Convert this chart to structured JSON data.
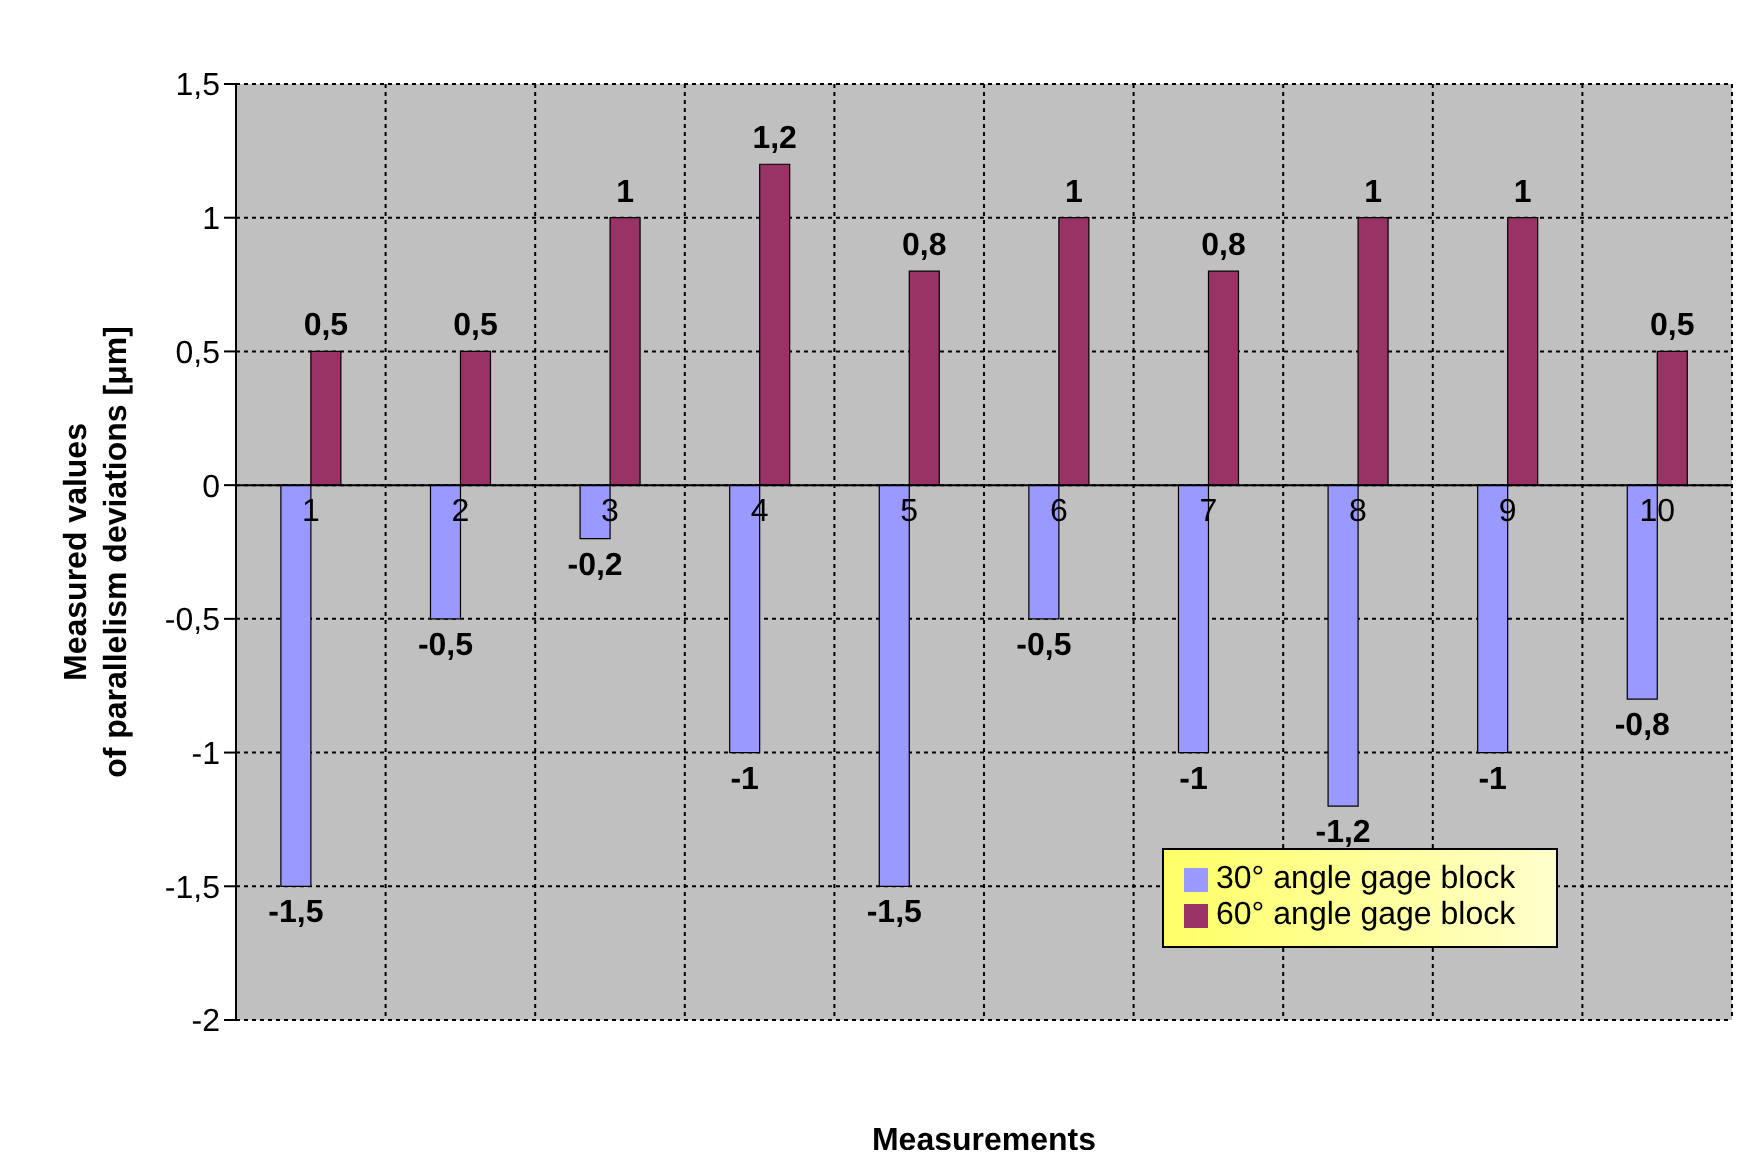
{
  "chart_data": {
    "type": "bar",
    "xlabel": "Measurements",
    "ylabel": "Measured values\nof parallelism deviations [μm]",
    "categories": [
      "1",
      "2",
      "3",
      "4",
      "5",
      "6",
      "7",
      "8",
      "9",
      "10"
    ],
    "series": [
      {
        "name": "30° angle gage block",
        "color": "#9999ff",
        "values": [
          -1.5,
          -0.5,
          -0.2,
          -1,
          -1.5,
          -0.5,
          -1,
          -1.2,
          -1,
          -0.8
        ],
        "value_labels": [
          "-1,5",
          "-0,5",
          "-0,2",
          "-1",
          "-1,5",
          "-0,5",
          "-1",
          "-1,2",
          "-1",
          "-0,8"
        ]
      },
      {
        "name": "60° angle gage block",
        "color": "#993366",
        "values": [
          0.5,
          0.5,
          1,
          1.2,
          0.8,
          1,
          0.8,
          1,
          1,
          0.5
        ],
        "value_labels": [
          "0,5",
          "0,5",
          "1",
          "1,2",
          "0,8",
          "1",
          "0,8",
          "1",
          "1",
          "0,5"
        ]
      }
    ],
    "ylim": [
      -2,
      1.5
    ],
    "yticks": [
      {
        "value": -2,
        "label": "-2"
      },
      {
        "value": -1.5,
        "label": "-1,5"
      },
      {
        "value": -1,
        "label": "-1"
      },
      {
        "value": -0.5,
        "label": "-0,5"
      },
      {
        "value": 0,
        "label": "0"
      },
      {
        "value": 0.5,
        "label": "0,5"
      },
      {
        "value": 1,
        "label": "1"
      },
      {
        "value": 1.5,
        "label": "1,5"
      }
    ],
    "grid": true,
    "legend": "bottom right"
  }
}
